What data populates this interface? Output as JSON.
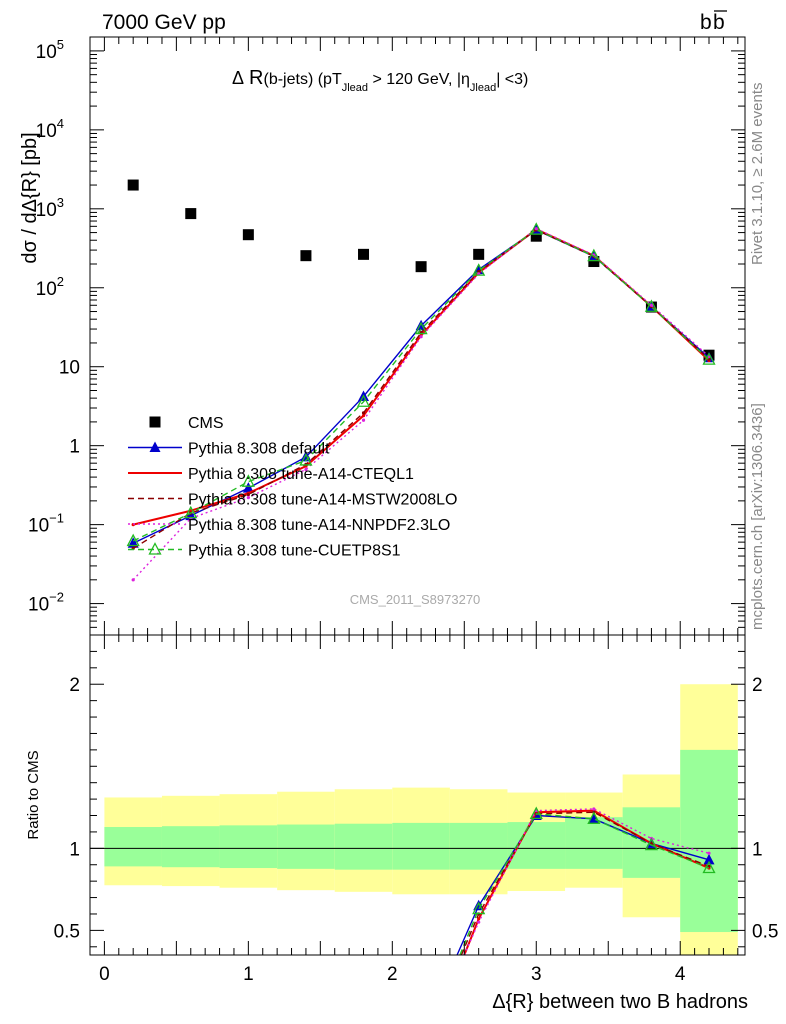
{
  "header": {
    "left": "7000 GeV pp",
    "right_base": "b",
    "right_bar": "b"
  },
  "side_labels": {
    "rivet": "Rivet 3.1.10, ≥ 2.6M events",
    "mcplots": "mcplots.cern.ch [arXiv:1306.3436]"
  },
  "chart_data": [
    {
      "panel": "main",
      "type": "scatter",
      "title": "Δ R(b-jets) (pT_Jlead > 120 GeV, |η_Jlead| <3)",
      "title_parts": {
        "delta": "Δ",
        "r": "R",
        "paren": "(b-jets) (pT",
        "sub1": "Jlead",
        "gt": " >  120 GeV, |η",
        "sub2": "Jlead",
        "end": "| <3)"
      },
      "ylabel": "dσ / dΔ{R} [pb]",
      "yscale": "log",
      "ylim": [
        0.004,
        150000
      ],
      "xlim": [
        -0.1,
        4.45
      ],
      "watermark": "CMS_2011_S8973270",
      "legend_placement": "lower-left",
      "x": [
        0.2,
        0.6,
        1.0,
        1.4,
        1.8,
        2.2,
        2.6,
        3.0,
        3.4,
        3.8,
        4.2
      ],
      "series": [
        {
          "name": "CMS",
          "color": "#000000",
          "marker": "square",
          "values": [
            2000,
            870,
            470,
            255,
            265,
            185,
            265,
            450,
            215,
            57,
            14
          ]
        },
        {
          "name": "Pythia 8.308 default",
          "color": "#0000cc",
          "marker": "triangle-filled",
          "line": "solid",
          "values": [
            0.058,
            0.13,
            0.29,
            0.72,
            4.2,
            33,
            170,
            540,
            250,
            58,
            13
          ]
        },
        {
          "name": "Pythia 8.308 tune-A14-CTEQL1",
          "color": "#ee0000",
          "marker": "none",
          "line": "solid",
          "values": [
            0.1,
            0.15,
            0.25,
            0.55,
            2.4,
            25,
            155,
            550,
            255,
            58,
            12
          ]
        },
        {
          "name": "Pythia 8.308 tune-A14-MSTW2008LO",
          "color": "#8b0000",
          "marker": "none",
          "line": "dashed",
          "values": [
            0.05,
            0.14,
            0.24,
            0.58,
            2.6,
            27,
            160,
            540,
            250,
            58,
            12.5
          ]
        },
        {
          "name": "Pythia 8.308 tune-A14-NNPDF2.3LO",
          "color": "#dd22dd",
          "marker": "none",
          "line": "dotted",
          "values": [
            0.02,
            0.12,
            0.22,
            0.5,
            2.1,
            24,
            150,
            560,
            260,
            60,
            13.5
          ]
        },
        {
          "name": "Pythia 8.308 tune-CUETP8S1",
          "color": "#22bb22",
          "marker": "triangle-open",
          "line": "dashed",
          "values": [
            0.062,
            0.14,
            0.35,
            0.65,
            3.6,
            30,
            165,
            545,
            252,
            57.5,
            12.3
          ]
        }
      ]
    },
    {
      "panel": "ratio",
      "type": "line",
      "ylabel": "Ratio to CMS",
      "xlabel": "Δ{R} between two B hadrons",
      "ylim": [
        0.35,
        2.3
      ],
      "xlim": [
        -0.1,
        4.45
      ],
      "x_ticks": [
        0,
        1,
        2,
        3,
        4
      ],
      "y_ticks": [
        0.5,
        1,
        2
      ],
      "bands": {
        "edges": [
          0.0,
          0.4,
          0.8,
          1.2,
          1.6,
          2.0,
          2.4,
          2.8,
          3.2,
          3.6,
          4.0,
          4.4
        ],
        "inner_lo": [
          0.89,
          0.885,
          0.88,
          0.875,
          0.87,
          0.87,
          0.87,
          0.875,
          0.875,
          0.82,
          0.49
        ],
        "inner_hi": [
          1.13,
          1.135,
          1.14,
          1.145,
          1.15,
          1.155,
          1.155,
          1.16,
          1.19,
          1.25,
          1.6
        ],
        "outer_lo": [
          0.775,
          0.77,
          0.76,
          0.745,
          0.735,
          0.72,
          0.72,
          0.74,
          0.76,
          0.58,
          0.33
        ],
        "outer_hi": [
          1.31,
          1.32,
          1.33,
          1.345,
          1.36,
          1.37,
          1.36,
          1.34,
          1.34,
          1.45,
          2.0
        ],
        "inner_color": "#99ff99",
        "outer_color": "#ffff99"
      },
      "series": [
        {
          "name": "Pythia 8.308 default",
          "x": [
            2.45,
            2.6,
            3.0,
            3.4,
            3.8,
            4.2
          ],
          "values": [
            0.34,
            0.65,
            1.2,
            1.18,
            1.03,
            0.93
          ]
        },
        {
          "name": "Pythia 8.308 tune-A14-CTEQL1",
          "x": [
            2.5,
            2.6,
            3.0,
            3.4,
            3.8,
            4.2
          ],
          "values": [
            0.34,
            0.57,
            1.22,
            1.23,
            1.03,
            0.88
          ]
        },
        {
          "name": "Pythia 8.308 tune-A14-MSTW2008LO",
          "x": [
            2.48,
            2.6,
            3.0,
            3.4,
            3.8,
            4.2
          ],
          "values": [
            0.34,
            0.6,
            1.21,
            1.22,
            1.03,
            0.89
          ]
        },
        {
          "name": "Pythia 8.308 tune-A14-NNPDF2.3LO",
          "x": [
            2.5,
            2.6,
            3.0,
            3.4,
            3.8,
            4.2
          ],
          "values": [
            0.34,
            0.55,
            1.23,
            1.24,
            1.06,
            0.97
          ]
        },
        {
          "name": "Pythia 8.308 tune-CUETP8S1",
          "x": [
            2.47,
            2.6,
            3.0,
            3.4,
            3.8,
            4.2
          ],
          "values": [
            0.34,
            0.63,
            1.21,
            1.18,
            1.02,
            0.88
          ]
        }
      ],
      "reference_line": 1
    }
  ]
}
